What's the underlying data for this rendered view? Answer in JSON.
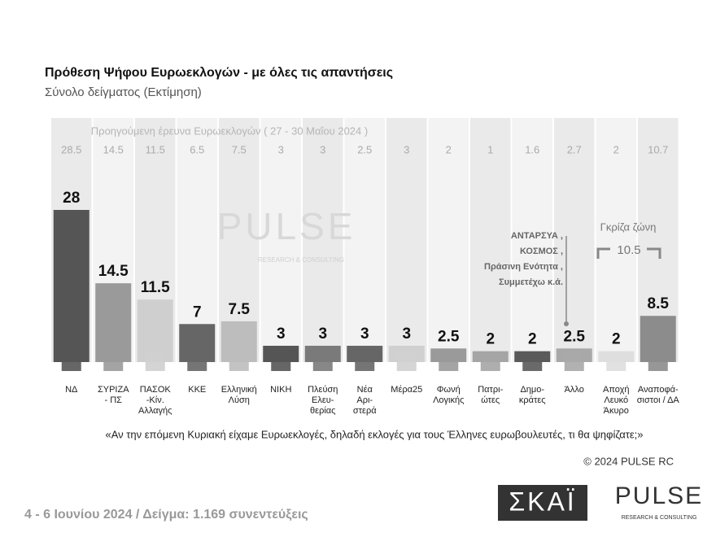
{
  "chart_data": {
    "type": "bar",
    "title": "Πρόθεση Ψήφου Ευρωεκλογών - με όλες τις απαντήσεις",
    "subtitle": "Σύνολο δείγματος   (Εκτίμηση)",
    "previous_label": "Προηγούμενη έρευνα Ευρωεκλογών ( 27 - 30 Μαΐου 2024 )",
    "categories": [
      "ΝΔ",
      "ΣΥΡΙΖΑ\n- ΠΣ",
      "ΠΑΣΟΚ\n-Κίν.\nΑλλαγής",
      "ΚΚΕ",
      "Ελληνική\nΛύση",
      "ΝΙΚΗ",
      "Πλεύση\nΕλευ-\nθερίας",
      "Νέα\nΑρι-\nστερά",
      "Μέρα25",
      "Φωνή\nΛογικής",
      "Πατρι-\nώτες",
      "Δημο-\nκράτες",
      "Άλλο",
      "Αποχή\nΛευκό\nΆκυρο",
      "Αναποφά-\nσιστοι / ΔΑ"
    ],
    "values": [
      28,
      14.5,
      11.5,
      7,
      7.5,
      3,
      3,
      3,
      3,
      2.5,
      2,
      2,
      2.5,
      2,
      8.5
    ],
    "previous_values": [
      28.5,
      14.5,
      11.5,
      6.5,
      7.5,
      3,
      3,
      2.5,
      3,
      2,
      1,
      1.6,
      2.7,
      2,
      10.7
    ],
    "colors": [
      "#555555",
      "#9a9a9a",
      "#cfcfcf",
      "#666666",
      "#bdbdbd",
      "#555555",
      "#7a7a7a",
      "#666666",
      "#d0d0d0",
      "#9a9a9a",
      "#a5a5a5",
      "#5a5a5a",
      "#a8a8a8",
      "#dedede",
      "#8c8c8c"
    ],
    "other_annotation": "ΑΝΤΑΡΣΥΑ ,\nΚΟΣΜΟΣ ,\nΠράσινη Ενότητα ,\nΣυμμετέχω  κ.ά.",
    "grey_zone_label": "Γκρίζα ζώνη",
    "grey_zone_value": 10.5,
    "watermark": "PULSE",
    "watermark_sub": "RESEARCH & CONSULTING",
    "question": "«Αν την επόμενη Κυριακή είχαμε Ευρωεκλογές, δηλαδή εκλογές για τους Έλληνες ευρωβουλευτές, τι θα ψηφίζατε;»",
    "copyright": "© 2024 PULSE RC",
    "footer": "4 - 6  Ιουνίου 2024  /  Δείγμα:  1.169 συνεντεύξεις",
    "logo_skai": "ΣΚΑΪ",
    "logo_pulse": "PULSE",
    "logo_pulse_sub": "RESEARCH & CONSULTING"
  }
}
